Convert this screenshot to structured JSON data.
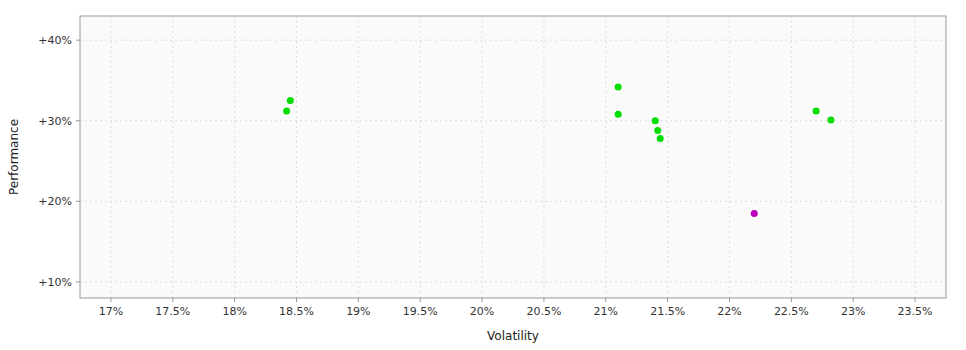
{
  "chart_data": {
    "type": "scatter",
    "xlabel": "Volatility",
    "ylabel": "Performance",
    "xlim": [
      16.75,
      23.75
    ],
    "ylim": [
      8.0,
      43.0
    ],
    "xticks": [
      {
        "value": 17.0,
        "label": "17%"
      },
      {
        "value": 17.5,
        "label": "17.5%"
      },
      {
        "value": 18.0,
        "label": "18%"
      },
      {
        "value": 18.5,
        "label": "18.5%"
      },
      {
        "value": 19.0,
        "label": "19%"
      },
      {
        "value": 19.5,
        "label": "19.5%"
      },
      {
        "value": 20.0,
        "label": "20%"
      },
      {
        "value": 20.5,
        "label": "20.5%"
      },
      {
        "value": 21.0,
        "label": "21%"
      },
      {
        "value": 21.5,
        "label": "21.5%"
      },
      {
        "value": 22.0,
        "label": "22%"
      },
      {
        "value": 22.5,
        "label": "22.5%"
      },
      {
        "value": 23.0,
        "label": "23%"
      },
      {
        "value": 23.5,
        "label": "23.5%"
      }
    ],
    "yticks": [
      {
        "value": 10.0,
        "label": "+10%"
      },
      {
        "value": 20.0,
        "label": "+20%"
      },
      {
        "value": 30.0,
        "label": "+30%"
      },
      {
        "value": 40.0,
        "label": "+40%"
      }
    ],
    "grid": true,
    "series": [
      {
        "color": "#00dd00",
        "x": [
          18.45,
          18.42,
          21.1,
          21.4,
          21.42,
          21.44,
          22.7,
          22.82,
          21.1
        ],
        "values": [
          32.5,
          31.2,
          30.8,
          30.0,
          28.8,
          27.8,
          31.2,
          30.1,
          34.2
        ]
      },
      {
        "color": "#bb00bb",
        "x": [
          22.2
        ],
        "values": [
          18.5
        ]
      }
    ]
  }
}
